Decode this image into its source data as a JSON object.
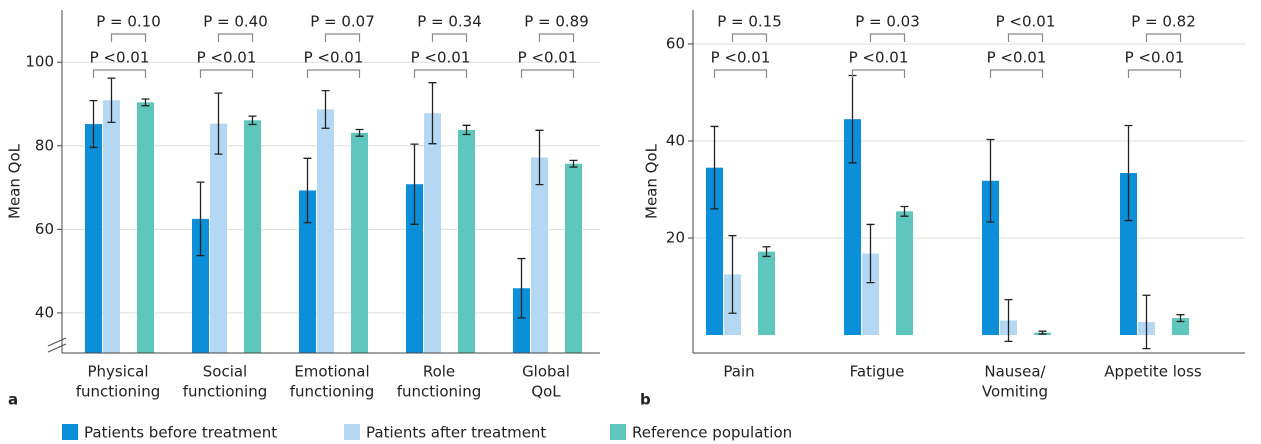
{
  "chart_data": [
    {
      "type": "bar",
      "panel_label": "a",
      "ylabel": "Mean QoL",
      "categories": [
        [
          "Physical",
          "functioning"
        ],
        [
          "Social",
          "functioning"
        ],
        [
          "Emotional",
          "functioning"
        ],
        [
          "Role",
          "functioning"
        ],
        [
          "Global",
          "QoL"
        ]
      ],
      "series": [
        {
          "name": "Patients before treatment",
          "color": "#0a8fd8",
          "values": [
            85.2,
            62.5,
            69.3,
            70.8,
            45.9
          ],
          "errors": [
            5.6,
            8.8,
            7.7,
            9.6,
            7.1
          ]
        },
        {
          "name": "Patients after treatment",
          "color": "#b4d8f3",
          "values": [
            90.9,
            85.3,
            88.7,
            87.8,
            77.2
          ],
          "errors": [
            5.3,
            7.3,
            4.5,
            7.3,
            6.5
          ]
        },
        {
          "name": "Reference population",
          "color": "#5ec6bc",
          "values": [
            90.4,
            86.1,
            83.1,
            83.8,
            75.7
          ],
          "errors": [
            0.8,
            1.0,
            0.8,
            1.1,
            0.8
          ]
        }
      ],
      "comparisons": [
        {
          "before_after": "P <0.01",
          "after_reference": "P = 0.10"
        },
        {
          "before_after": "P <0.01",
          "after_reference": "P = 0.40"
        },
        {
          "before_after": "P <0.01",
          "after_reference": "P = 0.07"
        },
        {
          "before_after": "P <0.01",
          "after_reference": "P = 0.34"
        },
        {
          "before_after": "P <0.01",
          "after_reference": "P = 0.89"
        }
      ],
      "ylim": [
        30.4,
        112.5
      ],
      "yticks": [
        40,
        60,
        80,
        100
      ],
      "grid": true
    },
    {
      "type": "bar",
      "panel_label": "b",
      "ylabel": "Mean QoL",
      "categories": [
        [
          "Pain"
        ],
        [
          "Fatigue"
        ],
        [
          "Nausea/",
          "Vomiting"
        ],
        [
          "Appetite loss"
        ]
      ],
      "series": [
        {
          "color": "#0a8fd8",
          "values": [
            34.5,
            44.5,
            31.8,
            33.4
          ],
          "errors": [
            8.5,
            9.0,
            8.5,
            9.8
          ]
        },
        {
          "color": "#b4d8f3",
          "values": [
            12.5,
            16.8,
            3.0,
            2.7
          ],
          "errors": [
            8.0,
            6.0,
            4.3,
            5.5
          ]
        },
        {
          "color": "#5ec6bc",
          "values": [
            17.2,
            25.5,
            0.5,
            3.5
          ],
          "errors": [
            1.0,
            1.0,
            0.3,
            0.7
          ]
        }
      ],
      "comparisons": [
        {
          "before_after": "P <0.01",
          "after_reference": "P = 0.15"
        },
        {
          "before_after": "P <0.01",
          "after_reference": "P = 0.03"
        },
        {
          "before_after": "P <0.01",
          "after_reference": "P <0.01"
        },
        {
          "before_after": "P <0.01",
          "after_reference": "P = 0.82"
        }
      ],
      "ylim": [
        -3.7,
        67
      ],
      "yticks": [
        20,
        40,
        60
      ],
      "grid": true
    }
  ]
}
